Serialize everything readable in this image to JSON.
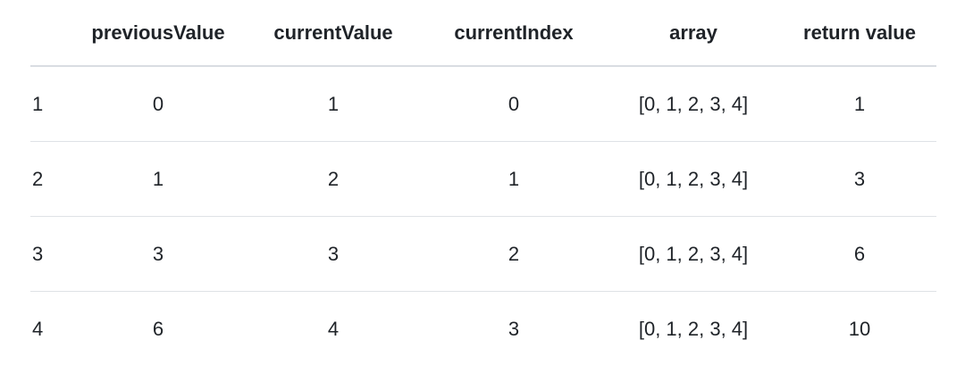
{
  "table": {
    "headers": [
      "",
      "previousValue",
      "currentValue",
      "currentIndex",
      "array",
      "return value"
    ],
    "rows": [
      [
        "1",
        "0",
        "1",
        "0",
        "[0, 1, 2, 3, 4]",
        "1"
      ],
      [
        "2",
        "1",
        "2",
        "1",
        "[0, 1, 2, 3, 4]",
        "3"
      ],
      [
        "3",
        "3",
        "3",
        "2",
        "[0, 1, 2, 3, 4]",
        "6"
      ],
      [
        "4",
        "6",
        "4",
        "3",
        "[0, 1, 2, 3, 4]",
        "10"
      ]
    ]
  }
}
